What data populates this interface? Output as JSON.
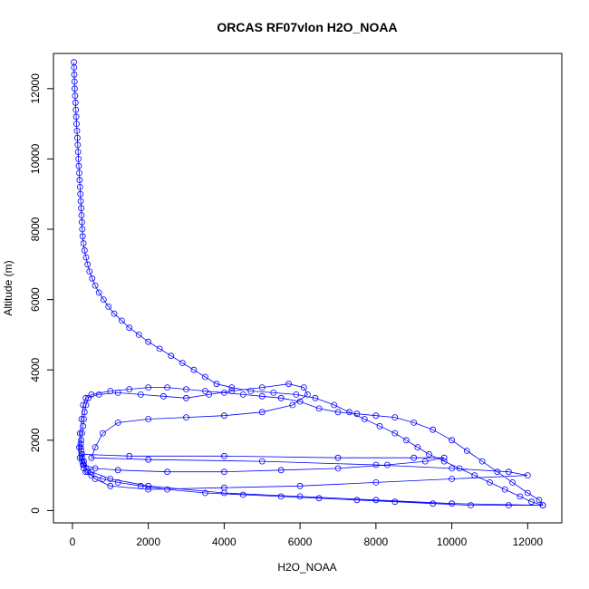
{
  "chart_data": {
    "type": "scatter",
    "title": "ORCAS RF07vlon H2O_NOAA",
    "xlabel": "H2O_NOAA",
    "ylabel": "Altitude (m)",
    "xlim": [
      -500,
      12900
    ],
    "ylim": [
      -350,
      13000
    ],
    "xticks": [
      0,
      2000,
      4000,
      6000,
      8000,
      10000,
      12000
    ],
    "yticks": [
      0,
      2000,
      4000,
      6000,
      8000,
      10000,
      12000
    ],
    "grid": false,
    "legend": "none",
    "marker": "open-circle",
    "connect_points": true,
    "series": [
      {
        "color": "#0000ff",
        "points": [
          [
            40,
            12750
          ],
          [
            45,
            12600
          ],
          [
            50,
            12400
          ],
          [
            55,
            12200
          ],
          [
            60,
            12000
          ],
          [
            70,
            11800
          ],
          [
            80,
            11600
          ],
          [
            90,
            11400
          ],
          [
            100,
            11200
          ],
          [
            110,
            11000
          ],
          [
            120,
            10800
          ],
          [
            130,
            10600
          ],
          [
            140,
            10400
          ],
          [
            150,
            10200
          ],
          [
            160,
            10000
          ],
          [
            170,
            9800
          ],
          [
            180,
            9600
          ],
          [
            190,
            9400
          ],
          [
            200,
            9200
          ],
          [
            210,
            9000
          ],
          [
            220,
            8800
          ],
          [
            230,
            8600
          ],
          [
            240,
            8400
          ],
          [
            250,
            8200
          ],
          [
            260,
            8000
          ],
          [
            270,
            7800
          ],
          [
            290,
            7600
          ],
          [
            320,
            7400
          ],
          [
            360,
            7200
          ],
          [
            400,
            7000
          ],
          [
            450,
            6800
          ],
          [
            520,
            6600
          ],
          [
            600,
            6400
          ],
          [
            700,
            6200
          ],
          [
            820,
            6000
          ],
          [
            950,
            5800
          ],
          [
            1100,
            5600
          ],
          [
            1300,
            5400
          ],
          [
            1500,
            5200
          ],
          [
            1750,
            5000
          ],
          [
            2000,
            4800
          ],
          [
            2300,
            4600
          ],
          [
            2600,
            4400
          ],
          [
            2900,
            4200
          ],
          [
            3200,
            4000
          ],
          [
            3500,
            3800
          ],
          [
            3800,
            3600
          ],
          [
            4200,
            3500
          ],
          [
            4700,
            3400
          ],
          [
            5300,
            3350
          ],
          [
            5900,
            3300
          ],
          [
            6400,
            3200
          ],
          [
            6900,
            3000
          ],
          [
            7300,
            2800
          ],
          [
            7700,
            2600
          ],
          [
            8100,
            2400
          ],
          [
            8500,
            2200
          ],
          [
            8800,
            2000
          ],
          [
            9100,
            1800
          ],
          [
            9400,
            1600
          ],
          [
            9800,
            1400
          ],
          [
            10200,
            1200
          ],
          [
            10600,
            1000
          ],
          [
            11000,
            800
          ],
          [
            11400,
            600
          ],
          [
            11800,
            400
          ],
          [
            12100,
            250
          ],
          [
            12400,
            150
          ],
          [
            11500,
            150
          ],
          [
            10500,
            150
          ],
          [
            9500,
            200
          ],
          [
            8500,
            250
          ],
          [
            7500,
            300
          ],
          [
            6500,
            350
          ],
          [
            5500,
            400
          ],
          [
            4500,
            450
          ],
          [
            3500,
            500
          ],
          [
            2500,
            600
          ],
          [
            1800,
            700
          ],
          [
            1200,
            800
          ],
          [
            800,
            900
          ],
          [
            500,
            1000
          ],
          [
            350,
            1100
          ],
          [
            300,
            1200
          ],
          [
            280,
            1300
          ],
          [
            260,
            1400
          ],
          [
            250,
            1500
          ],
          [
            240,
            1600
          ],
          [
            230,
            1700
          ],
          [
            220,
            1800
          ],
          [
            220,
            1900
          ],
          [
            230,
            2000
          ],
          [
            250,
            2200
          ],
          [
            280,
            2400
          ],
          [
            300,
            2600
          ],
          [
            320,
            2800
          ],
          [
            360,
            3000
          ],
          [
            420,
            3200
          ],
          [
            500,
            3300
          ],
          [
            1000,
            3400
          ],
          [
            1500,
            3450
          ],
          [
            2000,
            3500
          ],
          [
            2500,
            3500
          ],
          [
            3000,
            3450
          ],
          [
            3500,
            3400
          ],
          [
            4000,
            3350
          ],
          [
            4500,
            3300
          ],
          [
            5000,
            3250
          ],
          [
            5500,
            3200
          ],
          [
            6000,
            3100
          ],
          [
            6500,
            2900
          ],
          [
            7000,
            2800
          ],
          [
            7500,
            2750
          ],
          [
            8000,
            2700
          ],
          [
            8500,
            2650
          ],
          [
            9000,
            2500
          ],
          [
            9500,
            2300
          ],
          [
            10000,
            2000
          ],
          [
            10400,
            1700
          ],
          [
            10800,
            1400
          ],
          [
            11200,
            1100
          ],
          [
            11600,
            800
          ],
          [
            12000,
            500
          ],
          [
            12300,
            300
          ],
          [
            12400,
            150
          ],
          [
            10000,
            200
          ],
          [
            8000,
            300
          ],
          [
            6000,
            400
          ],
          [
            4000,
            500
          ],
          [
            2000,
            700
          ],
          [
            1000,
            900
          ],
          [
            500,
            1100
          ],
          [
            300,
            1400
          ],
          [
            250,
            1600
          ],
          [
            1500,
            1550
          ],
          [
            4000,
            1550
          ],
          [
            7000,
            1500
          ],
          [
            9000,
            1500
          ],
          [
            9800,
            1500
          ],
          [
            9300,
            1400
          ],
          [
            8300,
            1300
          ],
          [
            7000,
            1200
          ],
          [
            5500,
            1150
          ],
          [
            4000,
            1100
          ],
          [
            2500,
            1100
          ],
          [
            1200,
            1150
          ],
          [
            600,
            1200
          ],
          [
            300,
            1300
          ],
          [
            200,
            1500
          ],
          [
            180,
            1800
          ],
          [
            200,
            2200
          ],
          [
            240,
            2600
          ],
          [
            280,
            3000
          ],
          [
            350,
            3200
          ],
          [
            700,
            3300
          ],
          [
            1200,
            3350
          ],
          [
            1800,
            3300
          ],
          [
            2400,
            3250
          ],
          [
            3000,
            3200
          ],
          [
            3600,
            3300
          ],
          [
            4200,
            3400
          ],
          [
            5000,
            3500
          ],
          [
            5700,
            3600
          ],
          [
            6100,
            3500
          ],
          [
            6200,
            3300
          ],
          [
            5800,
            3000
          ],
          [
            5000,
            2800
          ],
          [
            4000,
            2700
          ],
          [
            3000,
            2650
          ],
          [
            2000,
            2600
          ],
          [
            1200,
            2500
          ],
          [
            800,
            2200
          ],
          [
            600,
            1800
          ],
          [
            500,
            1500
          ],
          [
            2000,
            1450
          ],
          [
            5000,
            1400
          ],
          [
            8000,
            1300
          ],
          [
            10000,
            1200
          ],
          [
            11500,
            1100
          ],
          [
            12000,
            1000
          ],
          [
            10000,
            900
          ],
          [
            8000,
            800
          ],
          [
            6000,
            700
          ],
          [
            4000,
            650
          ],
          [
            2000,
            600
          ],
          [
            1000,
            700
          ],
          [
            600,
            900
          ],
          [
            400,
            1100
          ],
          [
            300,
            1300
          ]
        ]
      }
    ]
  }
}
